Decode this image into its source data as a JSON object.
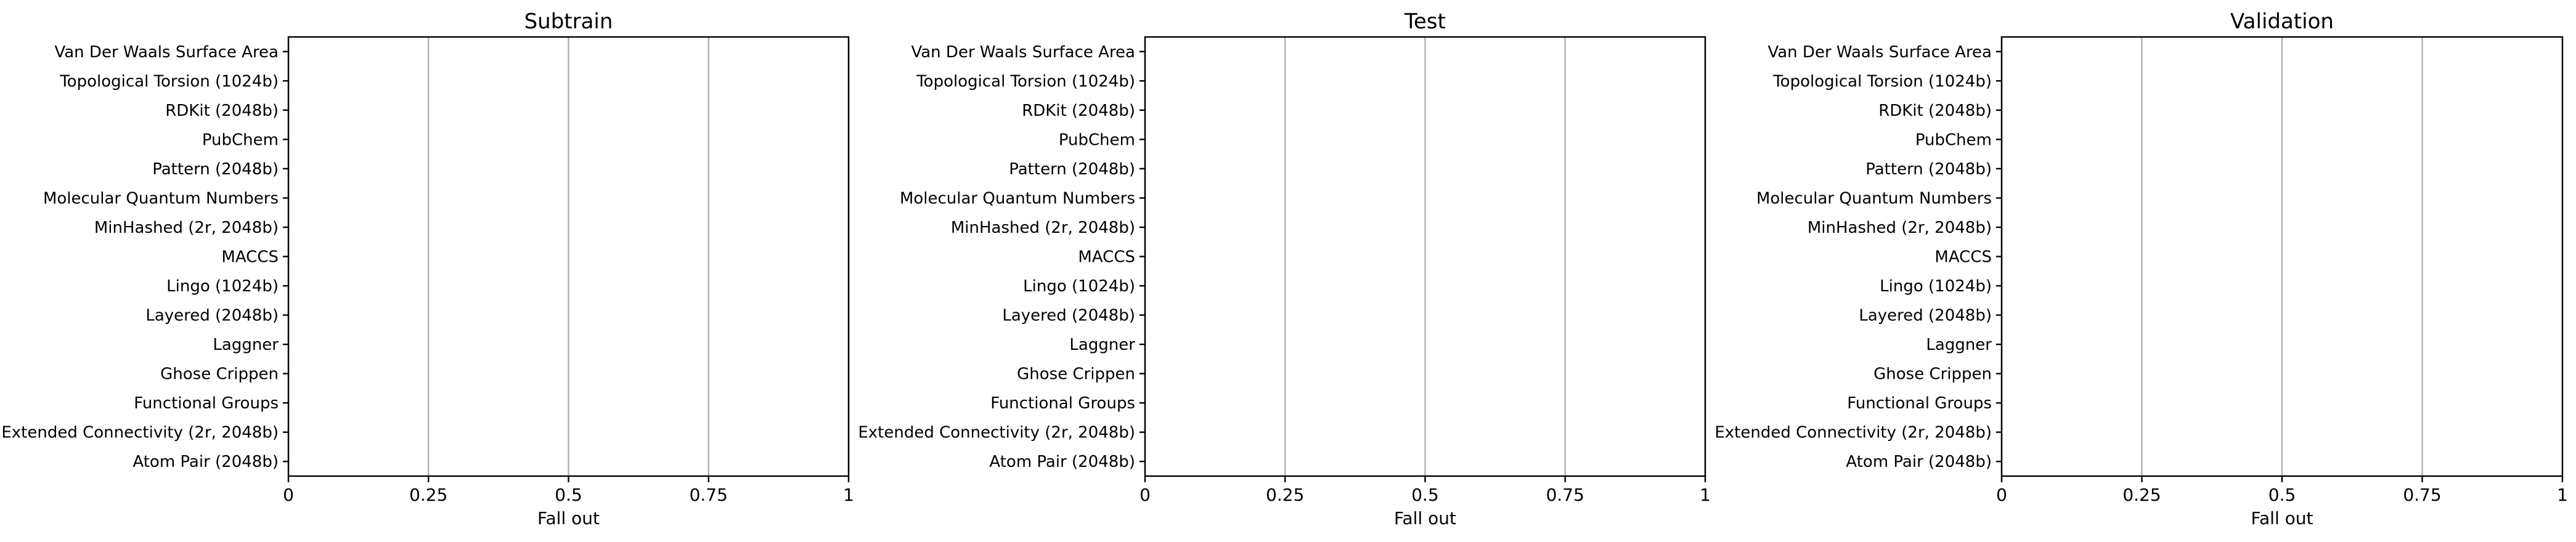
{
  "chart_data": [
    {
      "type": "bar",
      "orientation": "horizontal",
      "title": "Subtrain",
      "xlabel": "Fall out",
      "ylabel": "",
      "xlim": [
        0,
        1
      ],
      "xticks": [
        "0",
        "0.25",
        "0.5",
        "0.75",
        "1"
      ],
      "categories": [
        "Van Der Waals Surface Area",
        "Topological Torsion (1024b)",
        "RDKit (2048b)",
        "PubChem",
        "Pattern (2048b)",
        "Molecular Quantum Numbers",
        "MinHashed (2r, 2048b)",
        "MACCS",
        "Lingo (1024b)",
        "Layered (2048b)",
        "Laggner",
        "Ghose Crippen",
        "Functional Groups",
        "Extended Connectivity (2r, 2048b)",
        "Atom Pair (2048b)"
      ],
      "values": [
        0,
        0,
        0,
        0,
        0,
        0,
        0,
        0,
        0,
        0,
        0,
        0,
        0,
        0,
        0
      ],
      "grid": "vertical"
    },
    {
      "type": "bar",
      "orientation": "horizontal",
      "title": "Test",
      "xlabel": "Fall out",
      "ylabel": "",
      "xlim": [
        0,
        1
      ],
      "xticks": [
        "0",
        "0.25",
        "0.5",
        "0.75",
        "1"
      ],
      "categories": [
        "Van Der Waals Surface Area",
        "Topological Torsion (1024b)",
        "RDKit (2048b)",
        "PubChem",
        "Pattern (2048b)",
        "Molecular Quantum Numbers",
        "MinHashed (2r, 2048b)",
        "MACCS",
        "Lingo (1024b)",
        "Layered (2048b)",
        "Laggner",
        "Ghose Crippen",
        "Functional Groups",
        "Extended Connectivity (2r, 2048b)",
        "Atom Pair (2048b)"
      ],
      "values": [
        0,
        0,
        0,
        0,
        0,
        0,
        0,
        0,
        0,
        0,
        0,
        0,
        0,
        0,
        0
      ],
      "grid": "vertical"
    },
    {
      "type": "bar",
      "orientation": "horizontal",
      "title": "Validation",
      "xlabel": "Fall out",
      "ylabel": "",
      "xlim": [
        0,
        1
      ],
      "xticks": [
        "0",
        "0.25",
        "0.5",
        "0.75",
        "1"
      ],
      "categories": [
        "Van Der Waals Surface Area",
        "Topological Torsion (1024b)",
        "RDKit (2048b)",
        "PubChem",
        "Pattern (2048b)",
        "Molecular Quantum Numbers",
        "MinHashed (2r, 2048b)",
        "MACCS",
        "Lingo (1024b)",
        "Layered (2048b)",
        "Laggner",
        "Ghose Crippen",
        "Functional Groups",
        "Extended Connectivity (2r, 2048b)",
        "Atom Pair (2048b)"
      ],
      "values": [
        0,
        0,
        0,
        0,
        0,
        0,
        0,
        0,
        0,
        0,
        0,
        0,
        0,
        0,
        0
      ],
      "grid": "vertical"
    }
  ]
}
